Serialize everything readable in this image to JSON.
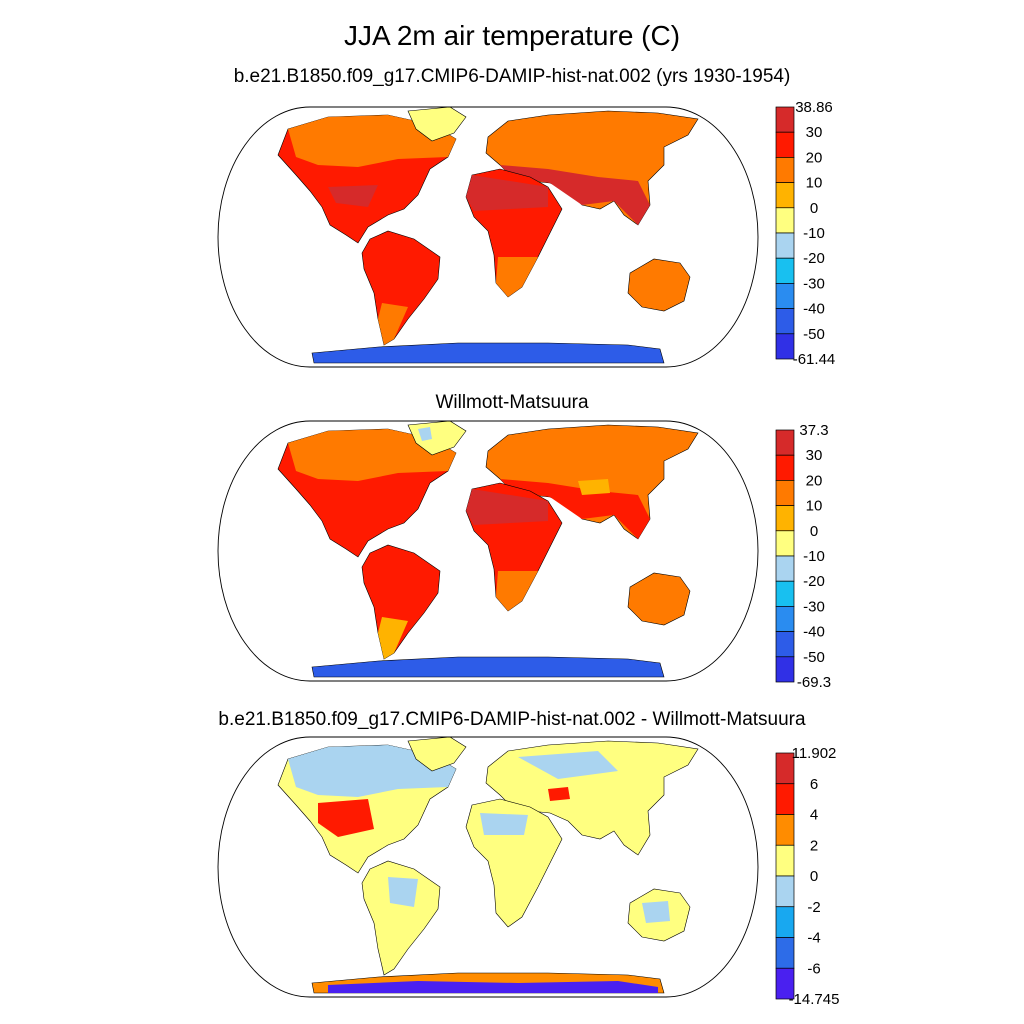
{
  "title": "JJA 2m air temperature (C)",
  "panels": [
    {
      "subtitle": "b.e21.B1850.f09_g17.CMIP6-DAMIP-hist-nat.002 (yrs 1930-1954)",
      "colorbar": {
        "labels": [
          "38.86",
          "30",
          "20",
          "10",
          "0",
          "-10",
          "-20",
          "-30",
          "-40",
          "-50",
          "-61.44"
        ],
        "colors": [
          "#d62a2a",
          "#ff1a00",
          "#ff7a00",
          "#ffb300",
          "#ffff80",
          "#aad4f0",
          "#18c0f0",
          "#2a8cf0",
          "#2d5ce8",
          "#3030e6"
        ]
      }
    },
    {
      "subtitle": "Willmott-Matsuura",
      "colorbar": {
        "labels": [
          "37.3",
          "30",
          "20",
          "10",
          "0",
          "-10",
          "-20",
          "-30",
          "-40",
          "-50",
          "-69.3"
        ],
        "colors": [
          "#d62a2a",
          "#ff1a00",
          "#ff7a00",
          "#ffb300",
          "#ffff80",
          "#aad4f0",
          "#18c0f0",
          "#2a8cf0",
          "#2d5ce8",
          "#3030e6"
        ]
      }
    },
    {
      "subtitle": "b.e21.B1850.f09_g17.CMIP6-DAMIP-hist-nat.002 - Willmott-Matsuura",
      "colorbar": {
        "labels": [
          "11.902",
          "6",
          "4",
          "2",
          "0",
          "-2",
          "-4",
          "-6",
          "-14.745"
        ],
        "colors": [
          "#d62a2a",
          "#ff1a00",
          "#ff8c00",
          "#ffff80",
          "#aad4f0",
          "#18a8f0",
          "#2d6ce8",
          "#4a20f0"
        ]
      }
    }
  ]
}
